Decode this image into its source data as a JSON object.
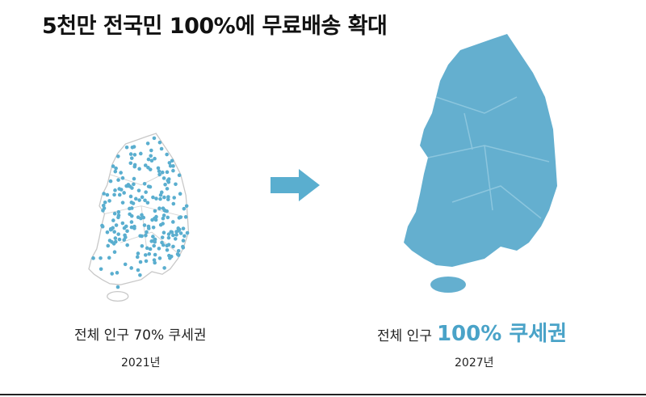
{
  "title": "5천만 전국민 100%에 무료배송 확대",
  "panels": [
    {
      "caption": "전체 인구 70% 쿠세권",
      "year": "2021년"
    },
    {
      "caption_prefix": "전체 인구",
      "caption_highlight": "100% 쿠세권",
      "year": "2027년"
    }
  ]
}
